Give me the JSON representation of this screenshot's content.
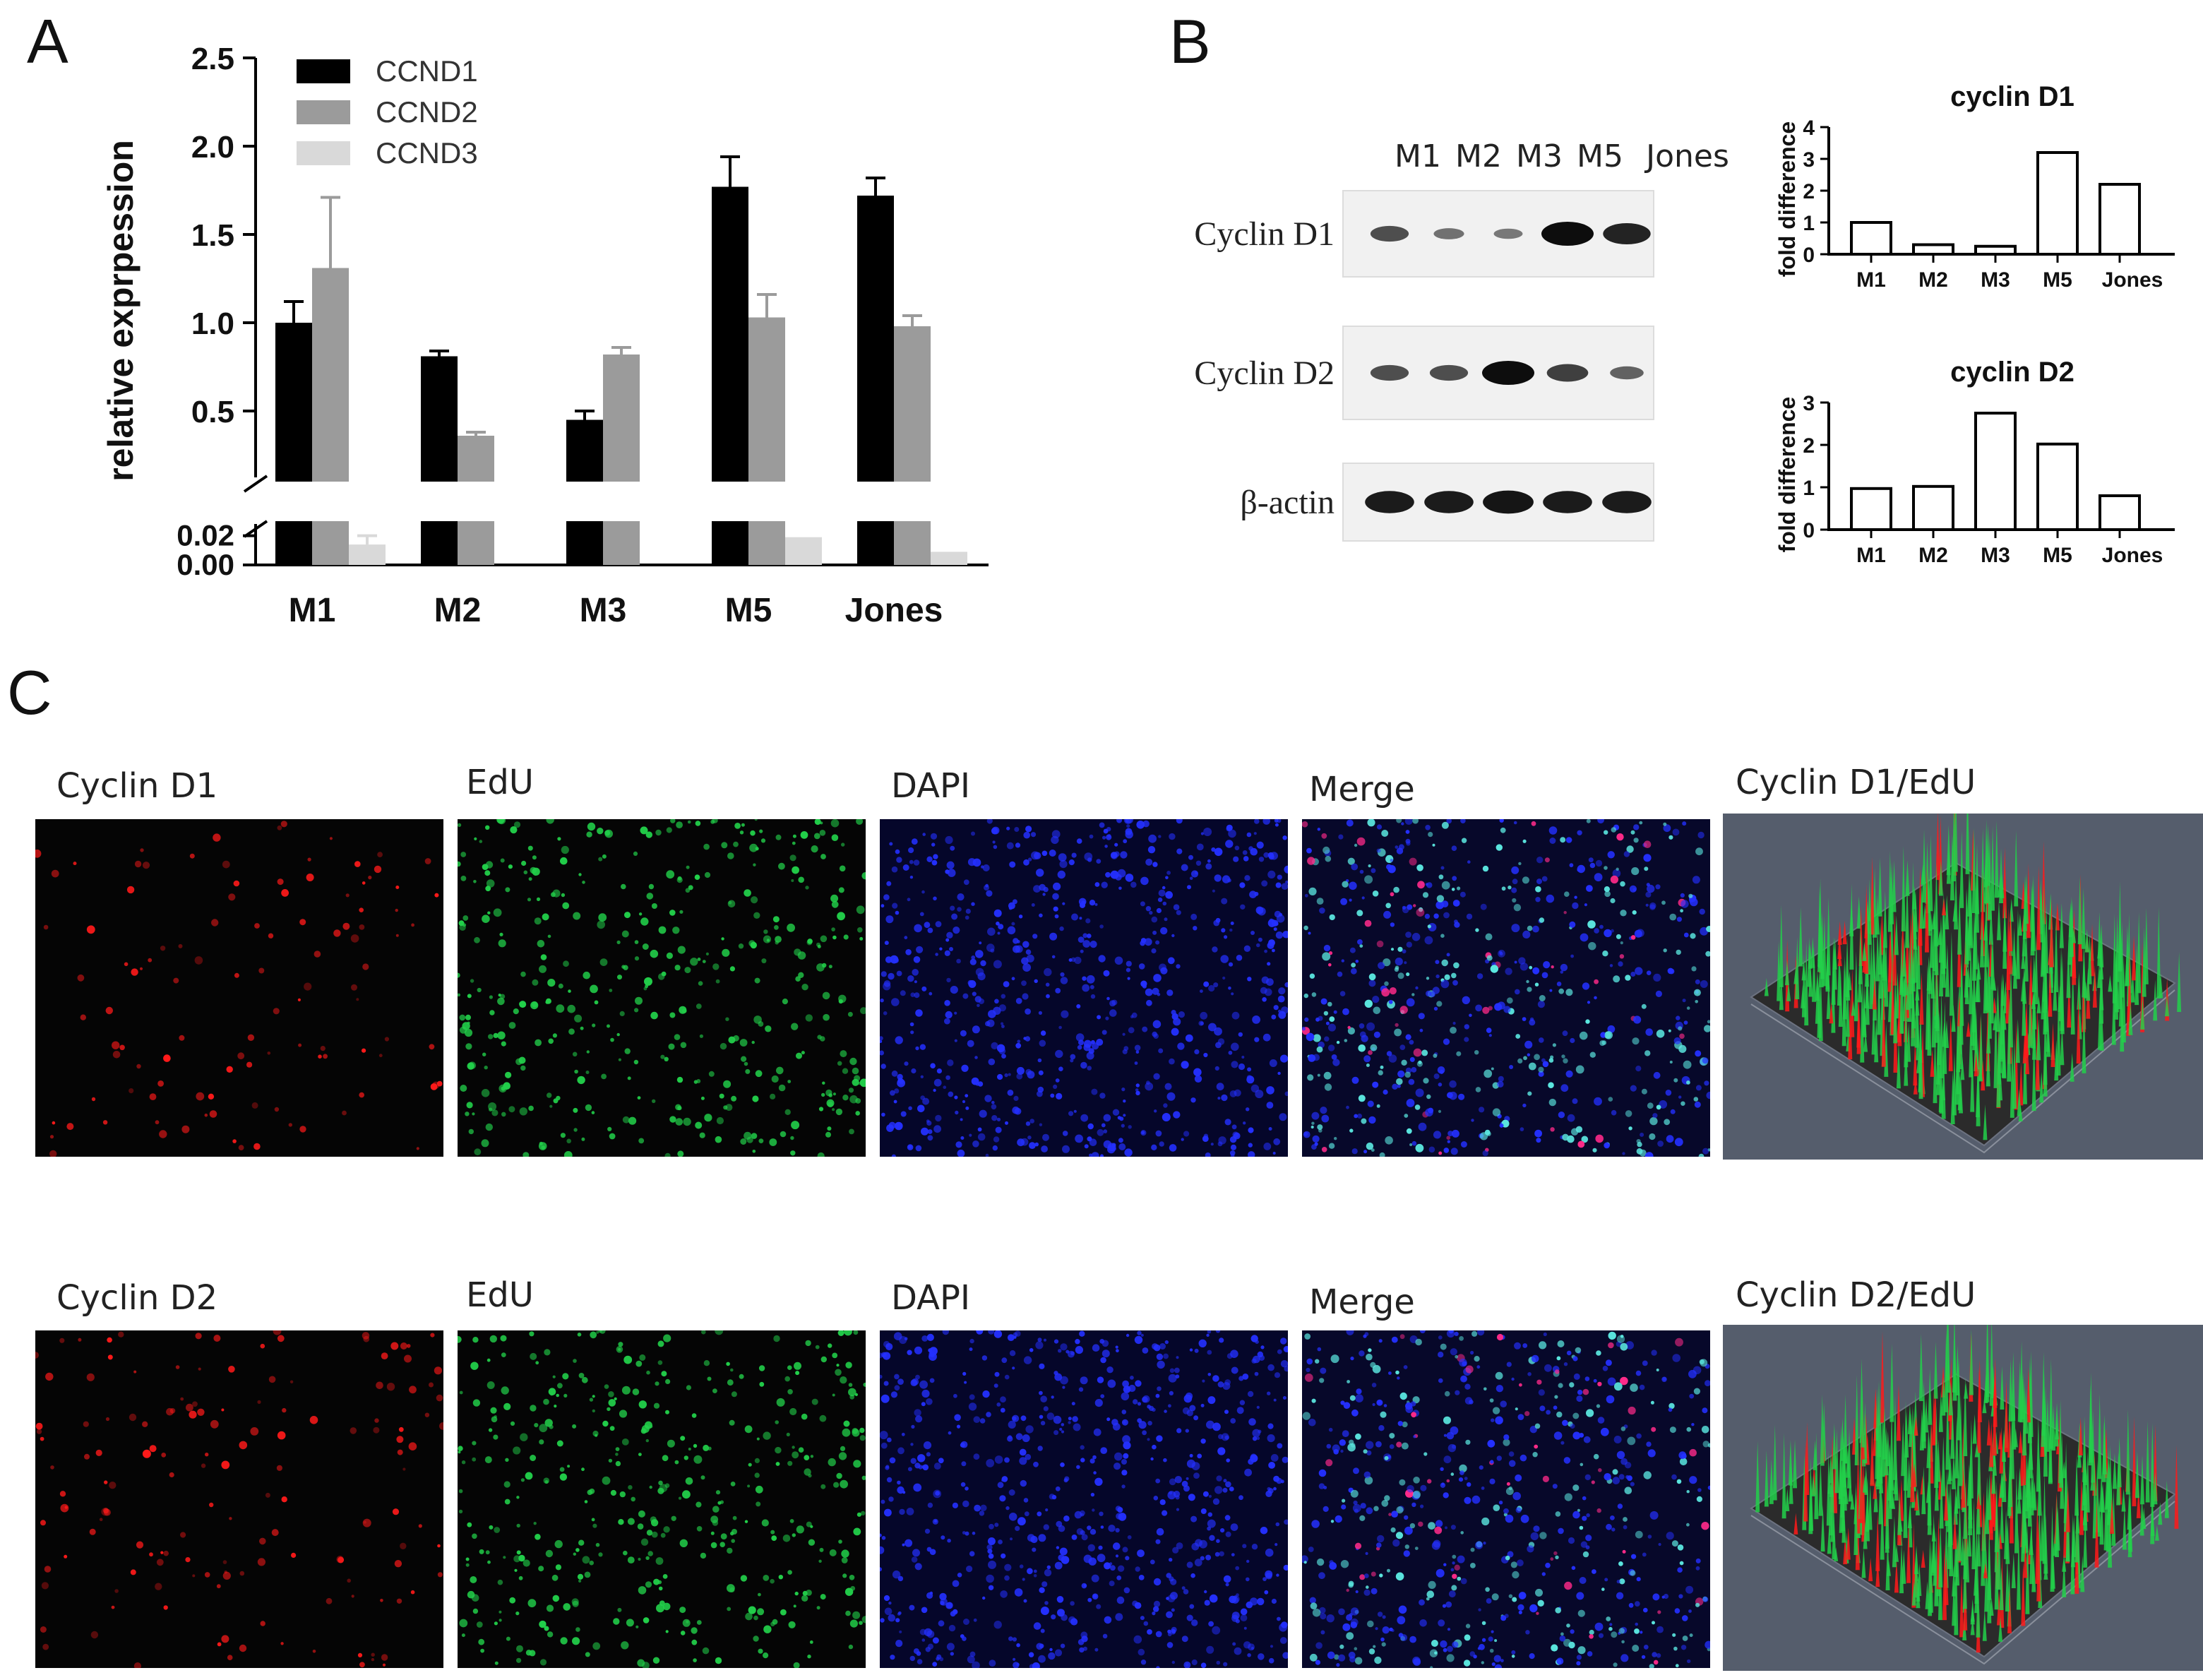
{
  "panels": {
    "a": "A",
    "b": "B",
    "c": "C"
  },
  "colors": {
    "ccnd1": "#000000",
    "ccnd2": "#9b9b9b",
    "ccnd3": "#d9d9d9",
    "red": "#ff1a1a",
    "green": "#22d04a",
    "blue": "#2430ff",
    "cyan": "#5be7e0",
    "surface_bg": "#555d6c"
  },
  "chart_data": [
    {
      "type": "bar",
      "ylabel": "relative exprpession",
      "categories": [
        "M1",
        "M2",
        "M3",
        "M5",
        "Jones"
      ],
      "y_break": {
        "lower_range": [
          0,
          0.03
        ],
        "upper_range": [
          0.1,
          2.5
        ]
      },
      "upper_ticks": [
        "0.5",
        "1.0",
        "1.5",
        "2.0",
        "2.5"
      ],
      "lower_ticks": [
        "0.00",
        "0.02"
      ],
      "legend_position": "top-left",
      "series": [
        {
          "name": "CCND1",
          "values": [
            1.0,
            0.81,
            0.45,
            1.77,
            1.72
          ],
          "errors": [
            0.12,
            0.03,
            0.05,
            0.17,
            0.1
          ]
        },
        {
          "name": "CCND2",
          "values": [
            1.31,
            0.36,
            0.82,
            1.03,
            0.98
          ],
          "errors": [
            0.4,
            0.02,
            0.04,
            0.13,
            0.06
          ]
        },
        {
          "name": "CCND3",
          "values": [
            0.014,
            0.0,
            0.0,
            0.019,
            0.009
          ],
          "errors": [
            0.006,
            0.0,
            0.0,
            0.0,
            0.0
          ]
        }
      ]
    },
    {
      "type": "bar",
      "title": "cyclin D1",
      "ylabel": "fold  difference",
      "categories": [
        "M1",
        "M2",
        "M3",
        "M5",
        "Jones"
      ],
      "values": [
        1.0,
        0.3,
        0.25,
        3.2,
        2.2
      ],
      "ylim": [
        0,
        4
      ],
      "yticks": [
        "0",
        "1",
        "2",
        "3",
        "4"
      ]
    },
    {
      "type": "bar",
      "title": "cyclin D2",
      "ylabel": "fold  difference",
      "categories": [
        "M1",
        "M2",
        "M3",
        "M5",
        "Jones"
      ],
      "values": [
        0.97,
        1.02,
        2.75,
        2.02,
        0.8
      ],
      "ylim": [
        0,
        3
      ],
      "yticks": [
        "0",
        "1",
        "2",
        "3"
      ]
    }
  ],
  "western_blot": {
    "lanes": [
      "M1",
      "M2",
      "M3",
      "M5",
      "Jones"
    ],
    "rows": [
      {
        "label": "Cyclin D1",
        "intensity": [
          0.55,
          0.3,
          0.25,
          1.0,
          0.85
        ]
      },
      {
        "label": "Cyclin D2",
        "intensity": [
          0.55,
          0.55,
          1.0,
          0.65,
          0.4
        ]
      },
      {
        "label": "β-actin",
        "intensity": [
          0.9,
          0.9,
          0.95,
          0.9,
          0.9
        ]
      }
    ]
  },
  "microscopy": {
    "rows": [
      {
        "labels": [
          "Cyclin D1",
          "EdU",
          "DAPI",
          "Merge",
          "Cyclin D1/EdU"
        ]
      },
      {
        "labels": [
          "Cyclin D2",
          "EdU",
          "DAPI",
          "Merge",
          "Cyclin D2/EdU"
        ]
      }
    ]
  }
}
